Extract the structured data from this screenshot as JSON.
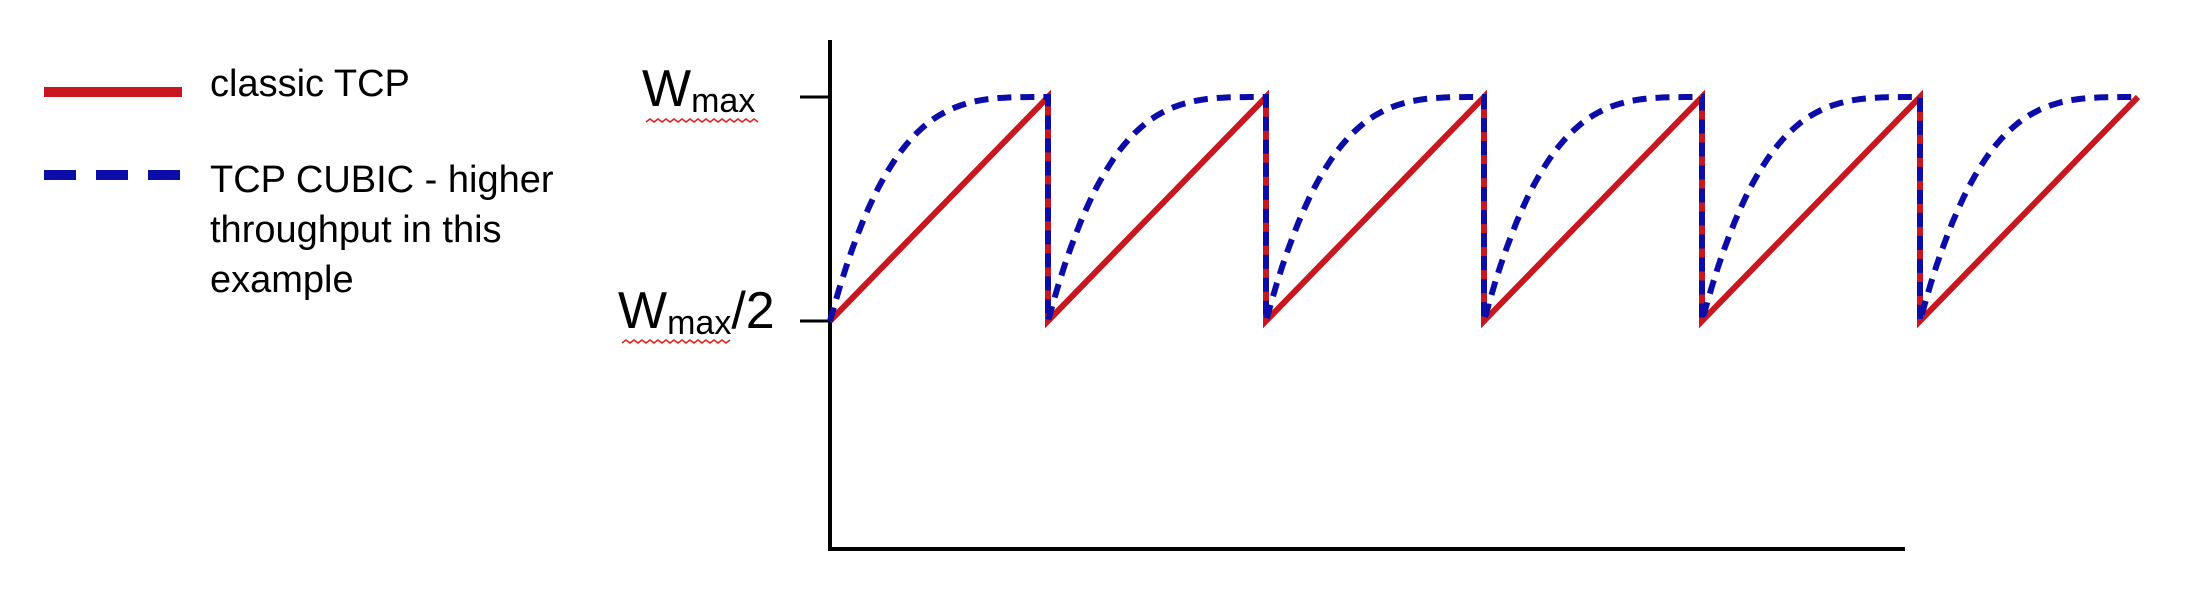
{
  "chart_data": {
    "type": "line",
    "y_tick_labels": {
      "top": {
        "main": "W",
        "sub": "max",
        "suffix": ""
      },
      "middle": {
        "main": "W",
        "sub": "max",
        "suffix": "/2"
      }
    },
    "ylim": [
      0,
      1
    ],
    "y_levels": {
      "top": 1.0,
      "middle": 0.5
    },
    "legend_placement": "left",
    "series": [
      {
        "name": "classic TCP",
        "legend_lines": [
          "classic TCP"
        ],
        "color": "#c8171e",
        "style": "solid",
        "shape": "sawtooth"
      },
      {
        "name": "TCP CUBIC - higher throughput in this example",
        "legend_lines": [
          "TCP CUBIC - higher",
          "throughput in this",
          "example"
        ],
        "color": "#0c0ca8",
        "style": "dashed",
        "shape": "concave-rise"
      }
    ],
    "cycles": 6
  }
}
